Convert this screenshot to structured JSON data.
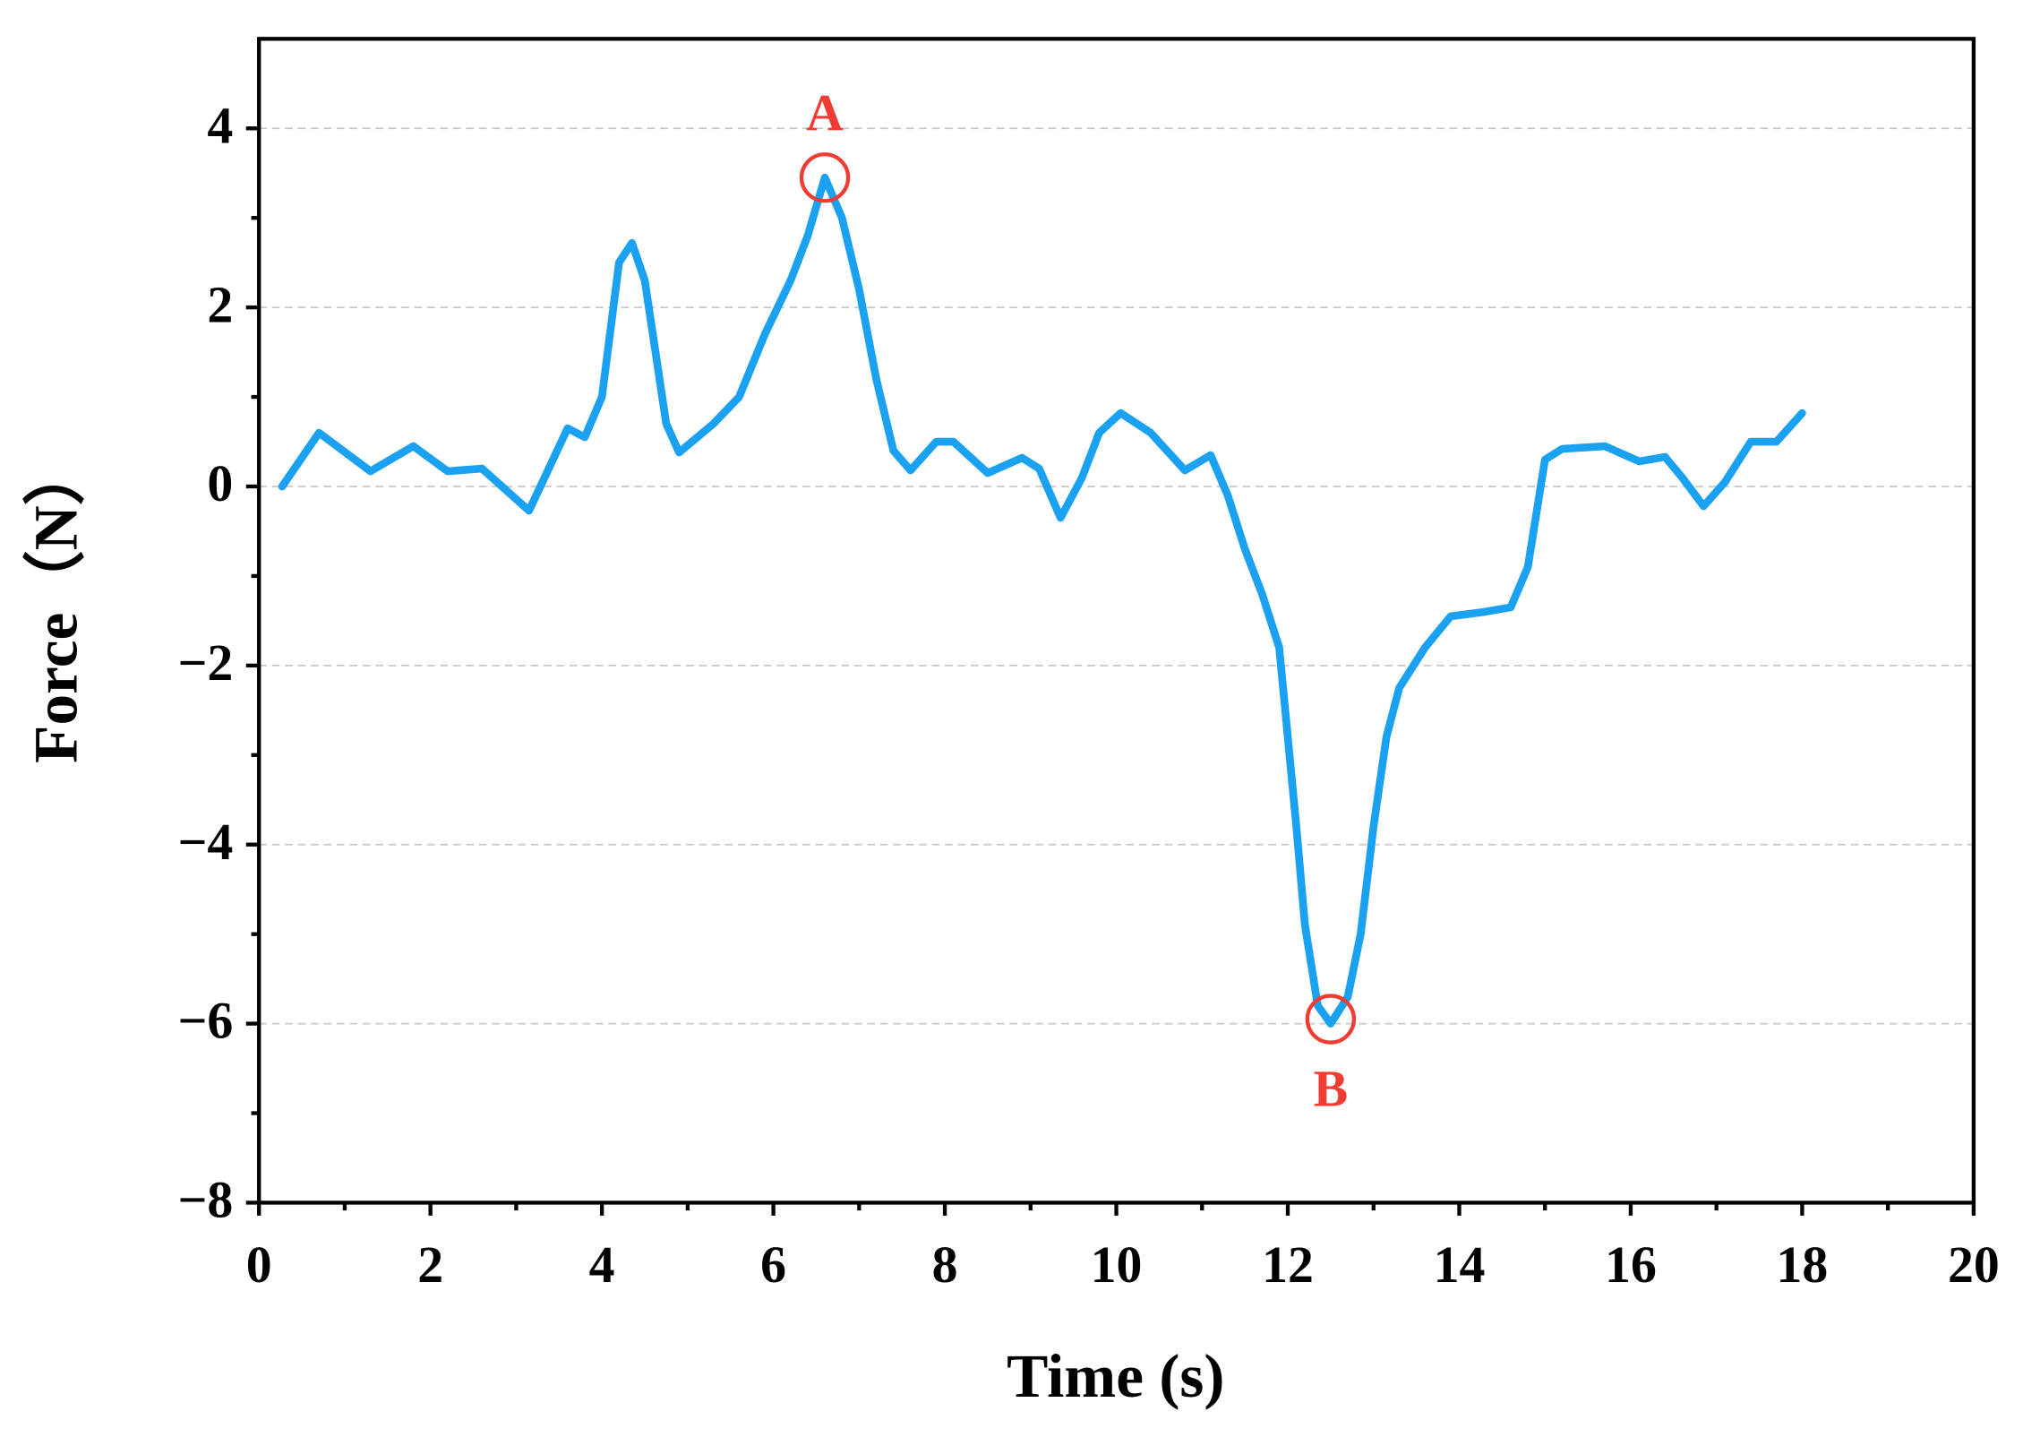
{
  "chart_data": {
    "type": "line",
    "x_label": "Time (s)",
    "y_label": "Force（N）",
    "x": [
      0.27,
      0.7,
      1.3,
      1.8,
      2.2,
      2.6,
      3.15,
      3.6,
      3.8,
      4.0,
      4.2,
      4.35,
      4.5,
      4.75,
      4.9,
      5.3,
      5.6,
      5.9,
      6.2,
      6.4,
      6.6,
      6.8,
      7.0,
      7.2,
      7.4,
      7.6,
      7.9,
      8.1,
      8.5,
      8.9,
      9.1,
      9.35,
      9.6,
      9.8,
      10.05,
      10.4,
      10.8,
      11.1,
      11.3,
      11.5,
      11.7,
      11.9,
      12.0,
      12.1,
      12.2,
      12.35,
      12.5,
      12.7,
      12.85,
      13.0,
      13.15,
      13.3,
      13.6,
      13.9,
      14.3,
      14.6,
      14.8,
      15.0,
      15.2,
      15.7,
      16.1,
      16.4,
      16.6,
      16.85,
      17.1,
      17.4,
      17.7,
      18.0
    ],
    "series": [
      {
        "color": "#1ba1f2",
        "values": [
          0,
          0.6,
          0.17,
          0.45,
          0.17,
          0.2,
          -0.27,
          0.65,
          0.55,
          1.0,
          2.5,
          2.72,
          2.3,
          0.7,
          0.38,
          0.7,
          1.0,
          1.7,
          2.3,
          2.8,
          3.45,
          3.0,
          2.2,
          1.2,
          0.4,
          0.18,
          0.5,
          0.5,
          0.15,
          0.32,
          0.2,
          -0.35,
          0.1,
          0.6,
          0.82,
          0.6,
          0.18,
          0.35,
          -0.1,
          -0.7,
          -1.2,
          -1.8,
          -2.8,
          -3.8,
          -4.9,
          -5.8,
          -6.0,
          -5.7,
          -5.0,
          -3.8,
          -2.8,
          -2.25,
          -1.8,
          -1.45,
          -1.4,
          -1.35,
          -0.9,
          0.3,
          0.42,
          0.45,
          0.28,
          0.33,
          0.1,
          -0.22,
          0.05,
          0.5,
          0.5,
          0.82
        ]
      }
    ],
    "xlim": [
      0,
      20
    ],
    "xticks": [
      0,
      2,
      4,
      6,
      8,
      10,
      12,
      14,
      16,
      18,
      20
    ],
    "ylim": [
      -8,
      5
    ],
    "yticks": [
      {
        "value": -8,
        "label": "−8"
      },
      {
        "value": -6,
        "label": "−6"
      },
      {
        "value": -4,
        "label": "−4"
      },
      {
        "value": -2,
        "label": "−2"
      },
      0,
      2,
      4
    ],
    "grid": true,
    "annotations": [
      {
        "text": "A",
        "x": 6.6,
        "y": 3.45,
        "position": "above",
        "color": "#f03c32"
      },
      {
        "text": "B",
        "x": 12.5,
        "y": -5.95,
        "position": "below",
        "color": "#f03c32"
      }
    ]
  }
}
